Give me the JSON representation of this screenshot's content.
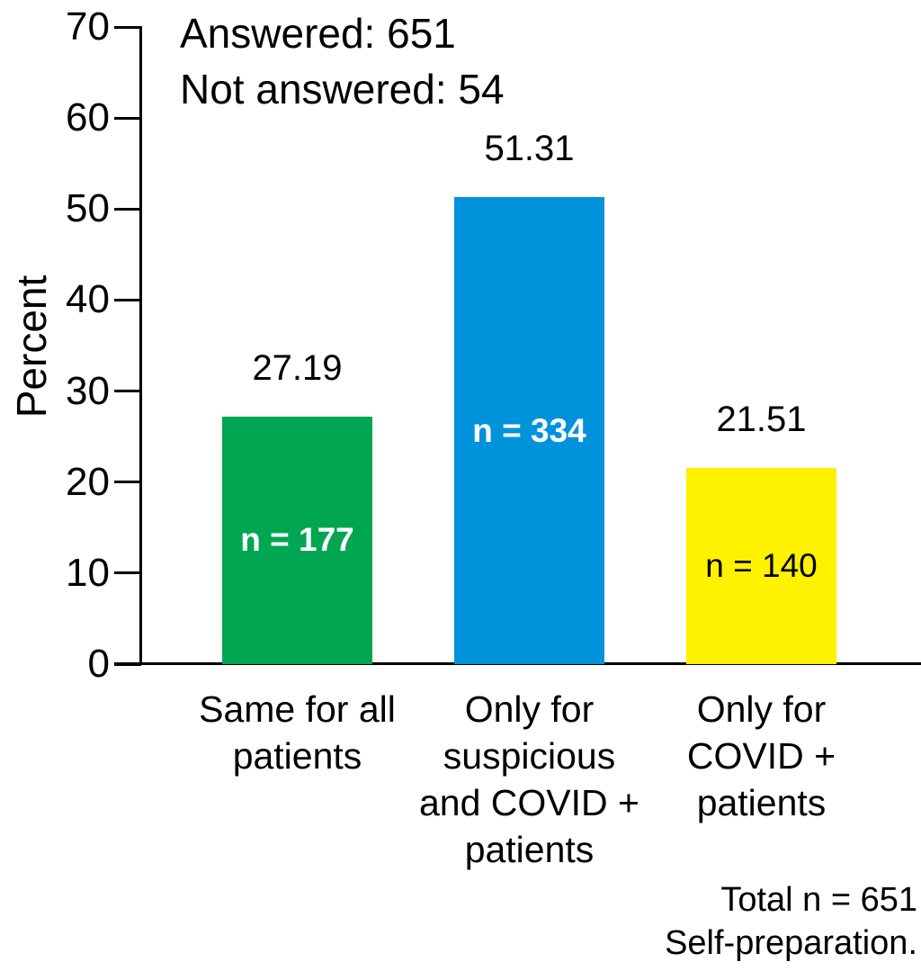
{
  "chart_data": {
    "type": "bar",
    "title": "",
    "xlabel": "",
    "ylabel": "Percent",
    "ylim": [
      0,
      70
    ],
    "yticks": [
      0,
      10,
      20,
      30,
      40,
      50,
      60,
      70
    ],
    "grid": false,
    "legend": "none",
    "categories": [
      "Same for all\npatients",
      "Only for\nsuspicious\nand COVID +\npatients",
      "Only for\nCOVID +\npatients"
    ],
    "values": [
      27.19,
      51.31,
      21.51
    ],
    "value_labels": [
      "27.19",
      "51.31",
      "21.51"
    ],
    "bar_labels": [
      "n = 177",
      "n = 334",
      "n = 140"
    ],
    "bar_counts": [
      177,
      334,
      140
    ],
    "bar_colors": [
      "#00A651",
      "#0093DC",
      "#FFF200"
    ],
    "bar_label_colors": [
      "#ffffff",
      "#ffffff",
      "#000000"
    ],
    "bar_label_bold": [
      true,
      true,
      false
    ],
    "annotations": [
      "Answered: 651",
      "Not answered: 54"
    ],
    "notes": [
      "Total n = 651",
      "Self-preparation."
    ],
    "axis_color": "#000000",
    "text_color": "#000000"
  }
}
